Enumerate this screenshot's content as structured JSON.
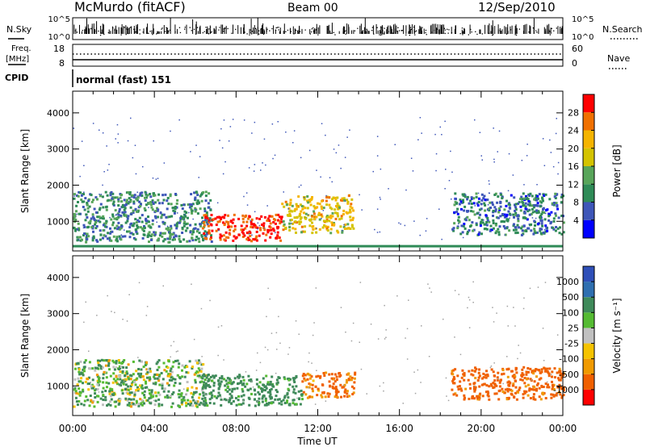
{
  "header": {
    "station": "McMurdo (fitACF)",
    "beam": "Beam 00",
    "date": "12/Sep/2010"
  },
  "top_panels": {
    "nsky_label": "N.Sky",
    "nsearch_label": "N.Search",
    "count_ticks_left": [
      "10^5",
      "10^0"
    ],
    "count_ticks_right": [
      "10^5",
      "10^0"
    ],
    "freq_label_1": "Freq.",
    "freq_label_2": "[MHz]",
    "freq_ticks": [
      "18",
      "8"
    ],
    "nave_label": "Nave",
    "nave_ticks": [
      "60",
      "0"
    ],
    "cpid_label": "CPID",
    "cpid_value": "normal (fast) 151"
  },
  "colors": {
    "power": [
      "#0000ff",
      "#3e56b8",
      "#2f8b57",
      "#58a55a",
      "#d4c300",
      "#f5b400",
      "#f07000",
      "#ff0000"
    ],
    "velocity": [
      "#ff0000",
      "#f06000",
      "#f09a00",
      "#f5c300",
      "#c0c0c0",
      "#55bb33",
      "#3f8a5a",
      "#2f6fb0",
      "#2f4fb8"
    ],
    "ground_scatter": "#a0a0a0"
  },
  "chart_data": [
    {
      "type": "heatmap",
      "name": "power",
      "x_ticks": [
        "00:00",
        "04:00",
        "08:00",
        "12:00",
        "16:00",
        "20:00",
        "00:00"
      ],
      "xlim_hours": [
        0,
        24
      ],
      "ylabel": "Slant Range [km]",
      "y_ticks": [
        "1000",
        "2000",
        "3000",
        "4000"
      ],
      "ylim": [
        180,
        4600
      ],
      "colorbar_label": "Power [dB]",
      "colorbar_ticks": [
        "4",
        "8",
        "12",
        "16",
        "20",
        "24",
        "28"
      ],
      "colorbar_range": [
        0,
        32
      ],
      "echo_regions": [
        {
          "t0": 0.0,
          "t1": 6.8,
          "r0": 450,
          "r1": 1850,
          "level": 10
        },
        {
          "t0": 6.3,
          "t1": 10.2,
          "r0": 480,
          "r1": 1220,
          "level": 29
        },
        {
          "t0": 10.2,
          "t1": 13.7,
          "r0": 700,
          "r1": 1750,
          "level": 20
        },
        {
          "t0": 18.5,
          "t1": 24.0,
          "r0": 650,
          "r1": 1800,
          "level": 8
        }
      ]
    },
    {
      "type": "heatmap",
      "name": "velocity",
      "x_ticks": [
        "00:00",
        "04:00",
        "08:00",
        "12:00",
        "16:00",
        "20:00",
        "00:00"
      ],
      "xlim_hours": [
        0,
        24
      ],
      "xlabel": "Time UT",
      "ylabel": "Slant Range [km]",
      "y_ticks": [
        "1000",
        "2000",
        "3000",
        "4000"
      ],
      "ylim": [
        180,
        4600
      ],
      "colorbar_label": "Velocity [m s⁻¹]",
      "colorbar_ticks": [
        "1000",
        "500",
        "100",
        "25",
        "-25",
        "-100",
        "-500",
        "-1000"
      ],
      "echo_regions": [
        {
          "t0": 0.0,
          "t1": 6.5,
          "r0": 450,
          "r1": 1750,
          "velocity": 80
        },
        {
          "t0": 6.3,
          "t1": 11.2,
          "r0": 480,
          "r1": 1350,
          "velocity": 200
        },
        {
          "t0": 11.2,
          "t1": 13.8,
          "r0": 700,
          "r1": 1400,
          "velocity": -150
        },
        {
          "t0": 18.5,
          "t1": 24.0,
          "r0": 650,
          "r1": 1550,
          "velocity": -200
        }
      ]
    }
  ]
}
